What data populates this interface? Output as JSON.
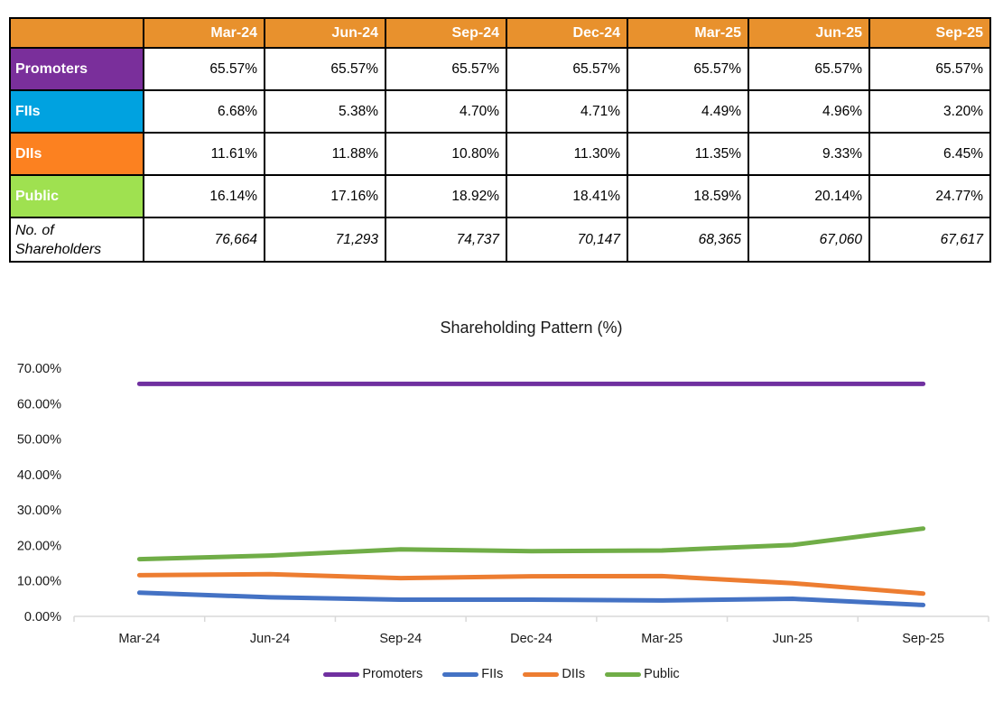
{
  "table": {
    "corner_label": "",
    "header_bg": "#E8912D",
    "border_color": "#000000",
    "columns": [
      "Mar-24",
      "Jun-24",
      "Sep-24",
      "Dec-24",
      "Mar-25",
      "Jun-25",
      "Sep-25"
    ],
    "rows": [
      {
        "label": "Promoters",
        "bg": "#7A2F9B",
        "text_color": "#FFFFFF",
        "italic": false,
        "values": [
          "65.57%",
          "65.57%",
          "65.57%",
          "65.57%",
          "65.57%",
          "65.57%",
          "65.57%"
        ]
      },
      {
        "label": "FIIs",
        "bg": "#00A2E0",
        "text_color": "#FFFFFF",
        "italic": false,
        "values": [
          "6.68%",
          "5.38%",
          "4.70%",
          "4.71%",
          "4.49%",
          "4.96%",
          "3.20%"
        ]
      },
      {
        "label": "DIIs",
        "bg": "#FC8120",
        "text_color": "#FFFFFF",
        "italic": false,
        "values": [
          "11.61%",
          "11.88%",
          "10.80%",
          "11.30%",
          "11.35%",
          "9.33%",
          "6.45%"
        ]
      },
      {
        "label": "Public",
        "bg": "#9FE150",
        "text_color": "#FFFFFF",
        "italic": false,
        "values": [
          "16.14%",
          "17.16%",
          "18.92%",
          "18.41%",
          "18.59%",
          "20.14%",
          "24.77%"
        ]
      },
      {
        "label": "No. of Shareholders",
        "bg": "#FFFFFF",
        "text_color": "#000000",
        "italic": true,
        "values": [
          "76,664",
          "71,293",
          "74,737",
          "70,147",
          "68,365",
          "67,060",
          "67,617"
        ]
      }
    ]
  },
  "chart_data": {
    "type": "line",
    "title": "Shareholding Pattern (%)",
    "categories": [
      "Mar-24",
      "Jun-24",
      "Sep-24",
      "Dec-24",
      "Mar-25",
      "Jun-25",
      "Sep-25"
    ],
    "series": [
      {
        "name": "Promoters",
        "color": "#7030A0",
        "values": [
          65.57,
          65.57,
          65.57,
          65.57,
          65.57,
          65.57,
          65.57
        ]
      },
      {
        "name": "FIIs",
        "color": "#4472C4",
        "values": [
          6.68,
          5.38,
          4.7,
          4.71,
          4.49,
          4.96,
          3.2
        ]
      },
      {
        "name": "DIIs",
        "color": "#ED7D31",
        "values": [
          11.61,
          11.88,
          10.8,
          11.3,
          11.35,
          9.33,
          6.45
        ]
      },
      {
        "name": "Public",
        "color": "#70AD47",
        "values": [
          16.14,
          17.16,
          18.92,
          18.41,
          18.59,
          20.14,
          24.77
        ]
      }
    ],
    "ylim": [
      0,
      70
    ],
    "ytick_step": 10,
    "ytick_labels": [
      "0.00%",
      "10.00%",
      "20.00%",
      "30.00%",
      "40.00%",
      "50.00%",
      "60.00%",
      "70.00%"
    ],
    "xlabel": "",
    "ylabel": "",
    "grid": false,
    "legend_position": "bottom",
    "axis_color": "#D9D9D9",
    "label_color": "#1a1a1a"
  }
}
